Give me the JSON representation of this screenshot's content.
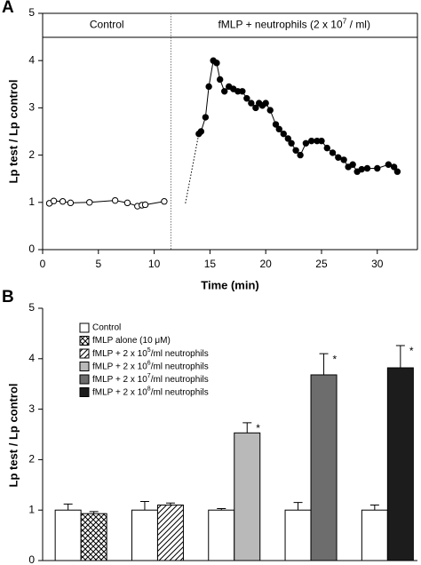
{
  "chart_data": [
    {
      "type": "line",
      "panel_label": "A",
      "header": {
        "left": "Control",
        "right": [
          "fMLP + neutrophils (2 x 10",
          "7",
          " / ml)"
        ]
      },
      "xlabel": "Time  (min)",
      "ylabel": "Lp test / Lp control",
      "xlim": [
        0,
        33.6
      ],
      "xticks": [
        0,
        5,
        10,
        15,
        20,
        25,
        30
      ],
      "ylim": [
        0,
        5
      ],
      "yticks": [
        0,
        1,
        2,
        3,
        4,
        5
      ],
      "divider_x": 11.5,
      "box": true,
      "series": [
        {
          "marker": "open",
          "color": "#000000",
          "x": [
            0.6,
            1.0,
            1.8,
            2.5,
            4.2,
            6.5,
            7.6,
            8.5,
            8.9,
            9.2,
            10.9
          ],
          "values": [
            0.98,
            1.03,
            1.02,
            0.99,
            1.0,
            1.04,
            0.99,
            0.92,
            0.94,
            0.95,
            1.02
          ]
        },
        {
          "marker": "filled",
          "color": "#000000",
          "x": [
            14.0,
            14.2,
            14.6,
            14.9,
            15.3,
            15.6,
            15.9,
            16.3,
            16.7,
            17.1,
            17.5,
            17.9,
            18.3,
            18.7,
            19.1,
            19.4,
            19.7,
            20.0,
            20.4,
            20.9,
            21.2,
            21.6,
            22.0,
            22.3,
            22.7,
            23.1,
            23.6,
            24.1,
            24.6,
            25.0,
            25.5,
            26.0,
            26.5,
            27.0,
            27.4,
            27.8,
            28.2,
            28.6,
            29.1,
            30.0,
            31.0,
            31.5,
            31.8
          ],
          "values": [
            2.45,
            2.5,
            2.8,
            3.45,
            4.0,
            3.95,
            3.6,
            3.35,
            3.45,
            3.4,
            3.35,
            3.35,
            3.2,
            3.1,
            3.0,
            3.1,
            3.05,
            3.1,
            2.95,
            2.65,
            2.55,
            2.45,
            2.35,
            2.25,
            2.1,
            2.0,
            2.25,
            2.3,
            2.3,
            2.3,
            2.15,
            2.05,
            1.95,
            1.9,
            1.75,
            1.8,
            1.65,
            1.7,
            1.72,
            1.72,
            1.8,
            1.75,
            1.65
          ]
        }
      ],
      "connector": {
        "style": "dotted",
        "color": "#000000",
        "x": [
          12.8,
          14.0
        ],
        "values": [
          0.98,
          2.45
        ]
      }
    },
    {
      "type": "bar",
      "panel_label": "B",
      "ylabel": "Lp test / Lp control",
      "ylim": [
        0,
        5
      ],
      "yticks": [
        0,
        1,
        2,
        3,
        4,
        5
      ],
      "box": false,
      "legend": "top-left",
      "categories": [
        null,
        null,
        null,
        null,
        null
      ],
      "series": [
        {
          "name": "Control",
          "color": "#ffffff",
          "values": [
            1.0,
            1.0,
            1.0,
            1.0,
            1.0
          ],
          "errors": [
            0.12,
            0.17,
            0.03,
            0.15,
            0.1
          ]
        },
        {
          "name": "fMLP alone (10 μM)",
          "color": "#000000",
          "pattern": "crosshatch",
          "values": [
            0.93,
            null,
            null,
            null,
            null
          ],
          "errors": [
            0.04,
            null,
            null,
            null,
            null
          ]
        },
        {
          "name": [
            "fMLP + 2 x 10",
            "5",
            "/ml neutrophils"
          ],
          "color": "#000000",
          "pattern": "hatch",
          "values": [
            null,
            1.1,
            null,
            null,
            null
          ],
          "errors": [
            null,
            0.04,
            null,
            null,
            null
          ]
        },
        {
          "name": [
            "fMLP + 2 x 10",
            "6",
            "/ml neutrophils"
          ],
          "color": "#b9b9b9",
          "values": [
            null,
            null,
            2.53,
            null,
            null
          ],
          "errors": [
            null,
            null,
            0.2,
            null,
            null
          ],
          "significance": [
            null,
            null,
            "*",
            null,
            null
          ]
        },
        {
          "name": [
            "fMLP + 2 x 10",
            "7",
            "/ml neutrophils"
          ],
          "color": "#6d6d6d",
          "values": [
            null,
            null,
            null,
            3.68,
            null
          ],
          "errors": [
            null,
            null,
            null,
            0.42,
            null
          ],
          "significance": [
            null,
            null,
            null,
            "*",
            null
          ]
        },
        {
          "name": [
            "fMLP + 2 x 10",
            "8",
            "/ml neutrophils"
          ],
          "color": "#1c1c1c",
          "values": [
            null,
            null,
            null,
            null,
            3.82
          ],
          "errors": [
            null,
            null,
            null,
            null,
            0.44
          ],
          "significance": [
            null,
            null,
            null,
            null,
            "*"
          ]
        }
      ]
    }
  ]
}
